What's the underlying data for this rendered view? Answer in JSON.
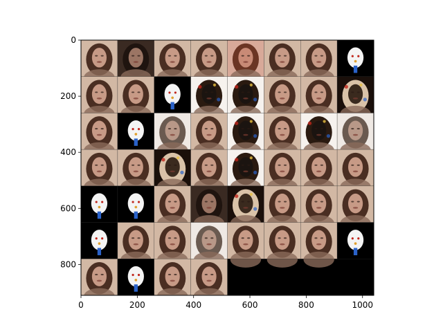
{
  "figure": {
    "x_ticks": [
      "0",
      "200",
      "400",
      "600",
      "800",
      "1000"
    ],
    "y_ticks": [
      "0",
      "200",
      "400",
      "600",
      "800"
    ],
    "extent": {
      "x": [
        0,
        1040
      ],
      "y": [
        910,
        0
      ]
    }
  },
  "grid": {
    "columns": 8,
    "rows": 7,
    "tile_count": 52,
    "tile_kinds": [
      "normal",
      "dark",
      "normal",
      "normal",
      "warm",
      "normal",
      "normal",
      "ghost",
      "normal",
      "normal",
      "ghost",
      "inv",
      "inv",
      "normal",
      "normal",
      "glitch",
      "normal",
      "ghost",
      "pale",
      "normal",
      "inv",
      "normal",
      "inv",
      "pale",
      "normal",
      "normal",
      "glitch",
      "normal",
      "inv",
      "normal",
      "normal",
      "normal",
      "ghost",
      "ghost",
      "normal",
      "dark",
      "glitch",
      "normal",
      "normal",
      "normal",
      "ghost",
      "normal",
      "normal",
      "pale",
      "normal",
      "normal",
      "normal",
      "ghost",
      "normal",
      "ghost",
      "normal",
      "normal"
    ]
  },
  "colors": {
    "frame": "#000000",
    "empty_fill": "#000000",
    "face": "#c79a86",
    "hair": "#4a2e22",
    "background_tile": "#d2b8a4",
    "ghost_white": "#f4f4f4",
    "accent_blue": "#2a62c9",
    "accent_red": "#c0261c"
  }
}
